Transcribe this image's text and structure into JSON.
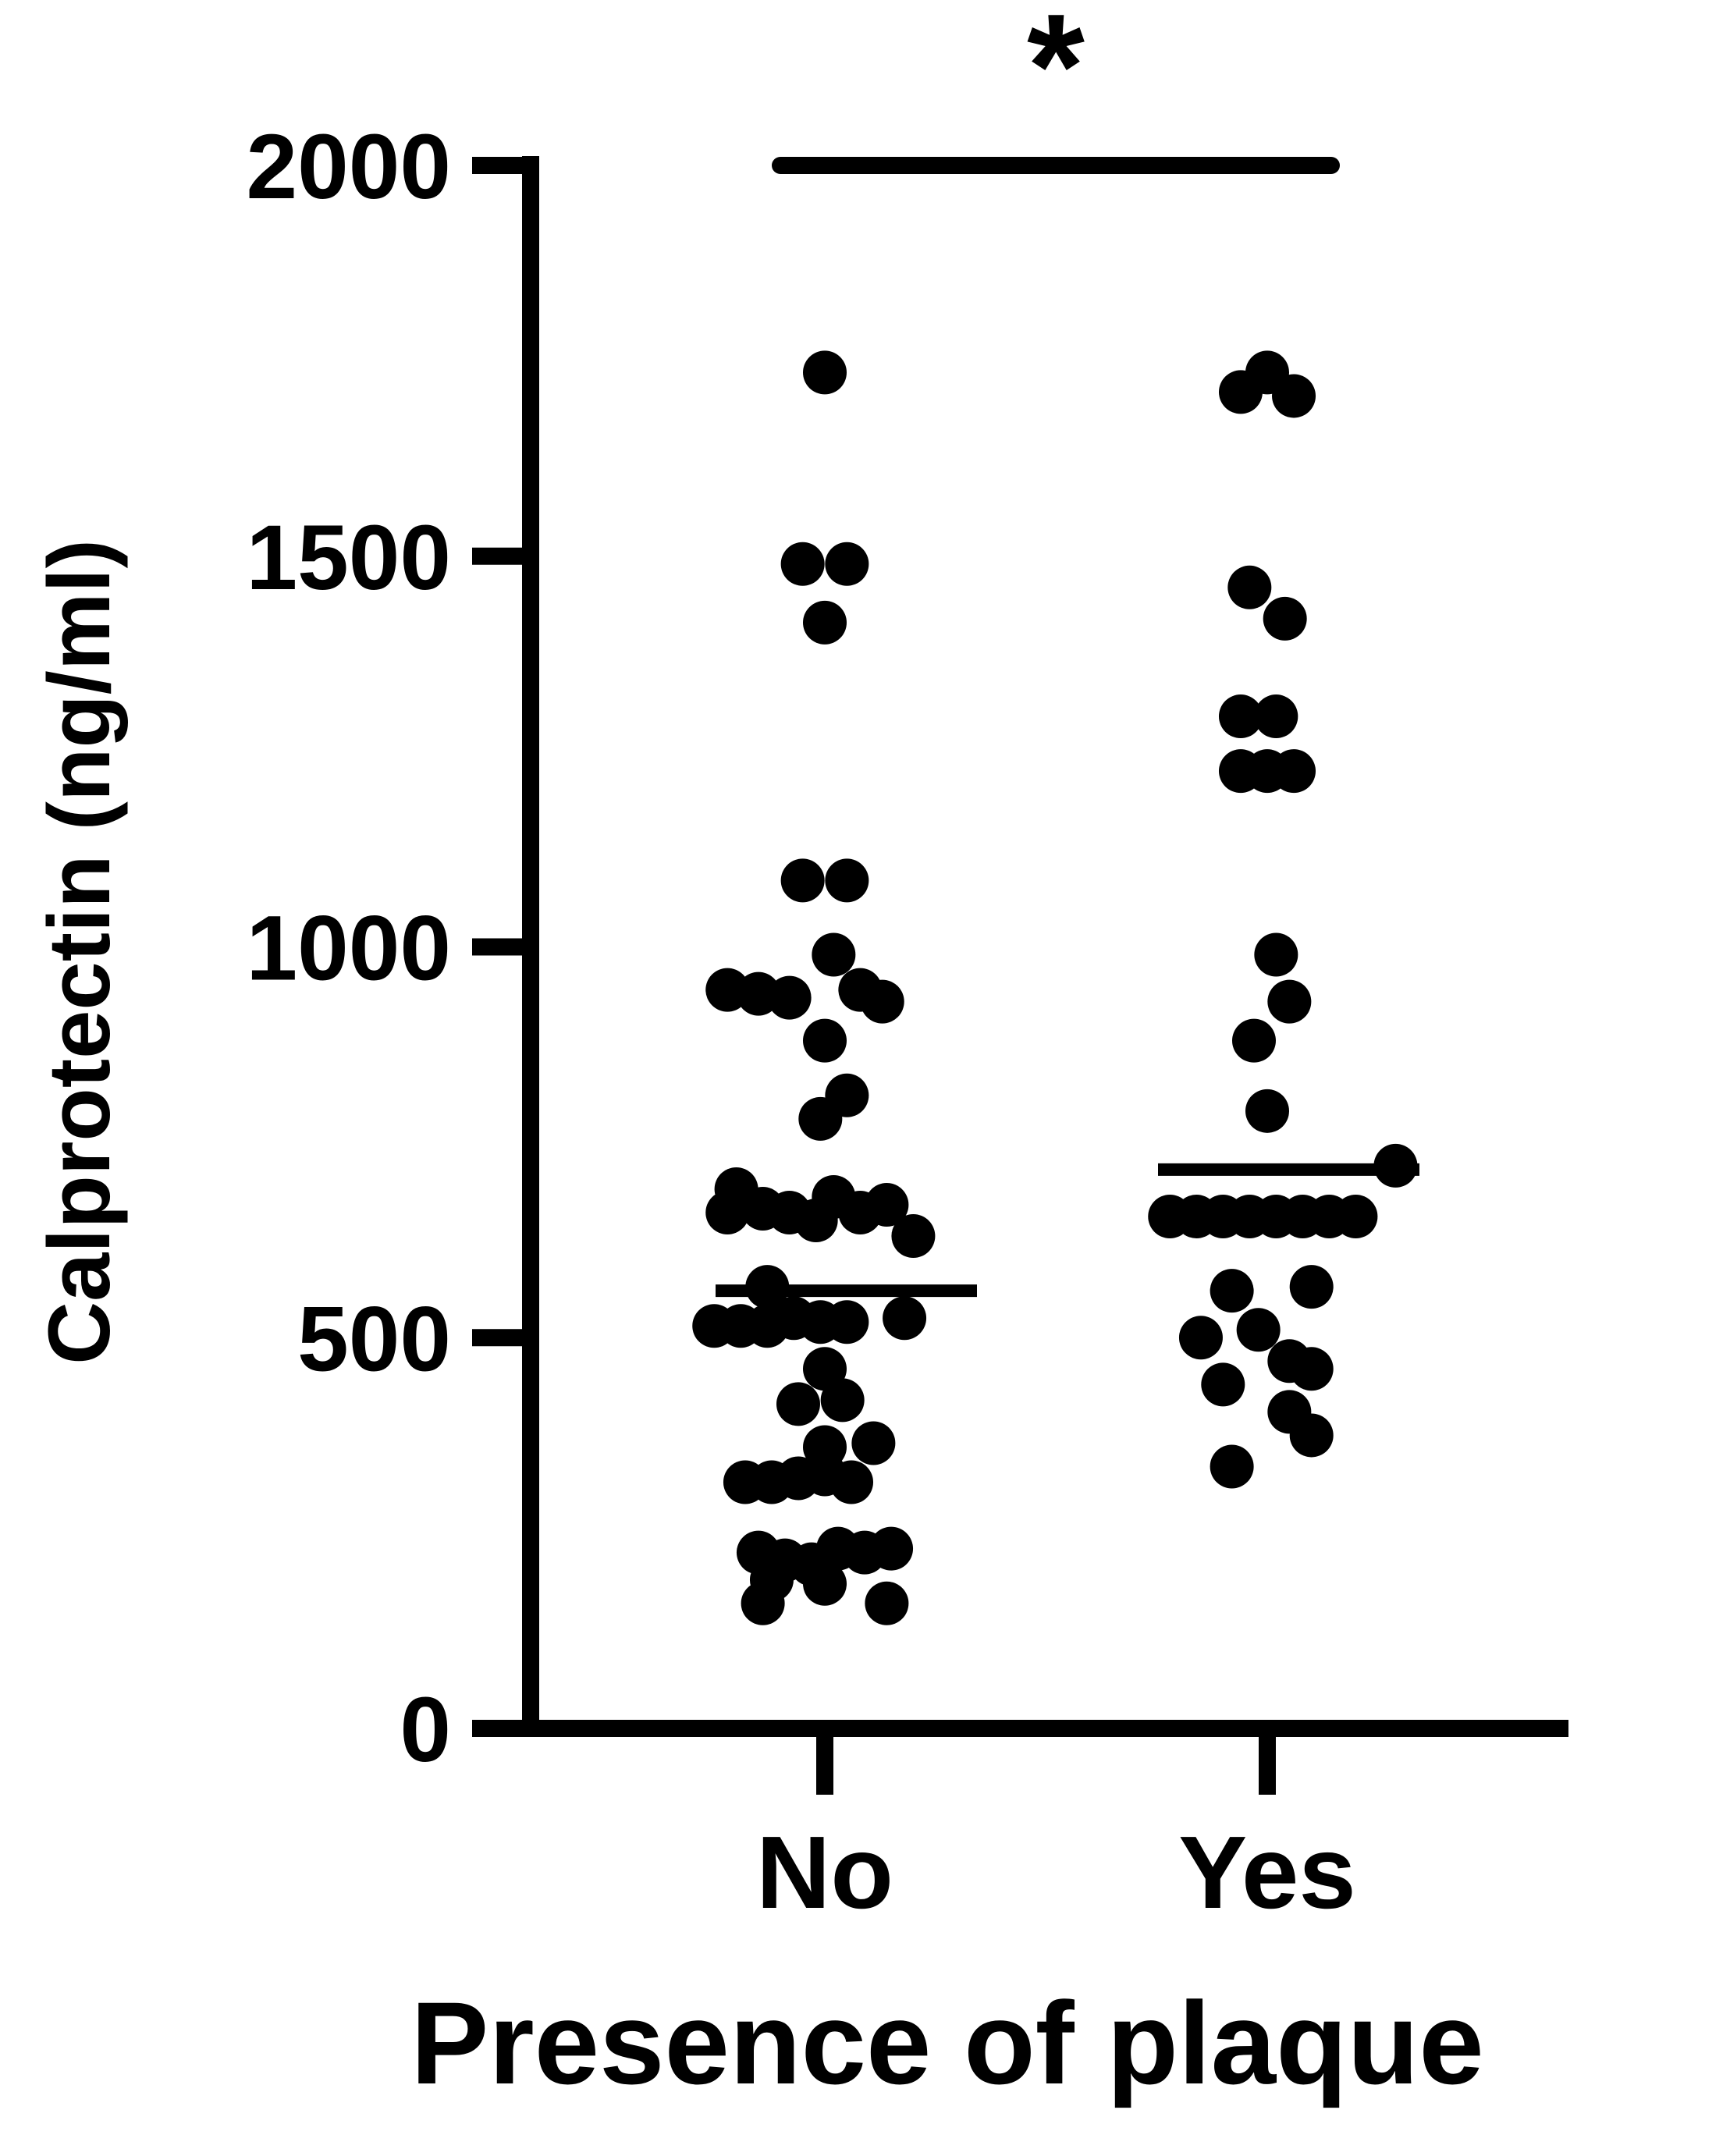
{
  "chart_data": {
    "type": "scatter",
    "xlabel": "Presence of plaque",
    "ylabel": "Calprotectin (ng/ml)",
    "ylim": [
      0,
      2000
    ],
    "yticks": [
      0,
      500,
      1000,
      1500,
      2000
    ],
    "categories": [
      "No",
      "Yes"
    ],
    "significance": {
      "label": "*",
      "between": [
        "No",
        "Yes"
      ]
    },
    "series": [
      {
        "category": "No",
        "median": 560,
        "points": [
          {
            "offset": 0.0,
            "y": 1735
          },
          {
            "offset": -0.05,
            "y": 1490
          },
          {
            "offset": 0.05,
            "y": 1490
          },
          {
            "offset": 0.0,
            "y": 1415
          },
          {
            "offset": -0.05,
            "y": 1085
          },
          {
            "offset": 0.05,
            "y": 1085
          },
          {
            "offset": 0.02,
            "y": 990
          },
          {
            "offset": -0.22,
            "y": 945
          },
          {
            "offset": -0.15,
            "y": 940
          },
          {
            "offset": -0.08,
            "y": 935
          },
          {
            "offset": 0.08,
            "y": 945
          },
          {
            "offset": 0.13,
            "y": 930
          },
          {
            "offset": 0.0,
            "y": 880
          },
          {
            "offset": 0.05,
            "y": 810
          },
          {
            "offset": -0.01,
            "y": 780
          },
          {
            "offset": -0.22,
            "y": 660
          },
          {
            "offset": -0.2,
            "y": 690
          },
          {
            "offset": -0.14,
            "y": 665
          },
          {
            "offset": -0.08,
            "y": 660
          },
          {
            "offset": -0.02,
            "y": 650
          },
          {
            "offset": 0.02,
            "y": 680
          },
          {
            "offset": 0.08,
            "y": 660
          },
          {
            "offset": 0.14,
            "y": 670
          },
          {
            "offset": 0.2,
            "y": 630
          },
          {
            "offset": -0.25,
            "y": 515
          },
          {
            "offset": -0.19,
            "y": 515
          },
          {
            "offset": -0.13,
            "y": 515
          },
          {
            "offset": -0.07,
            "y": 525
          },
          {
            "offset": -0.01,
            "y": 520
          },
          {
            "offset": 0.05,
            "y": 520
          },
          {
            "offset": -0.13,
            "y": 565
          },
          {
            "offset": 0.18,
            "y": 525
          },
          {
            "offset": 0.0,
            "y": 460
          },
          {
            "offset": -0.06,
            "y": 415
          },
          {
            "offset": 0.04,
            "y": 420
          },
          {
            "offset": 0.0,
            "y": 360
          },
          {
            "offset": 0.11,
            "y": 365
          },
          {
            "offset": -0.18,
            "y": 315
          },
          {
            "offset": -0.12,
            "y": 315
          },
          {
            "offset": -0.06,
            "y": 320
          },
          {
            "offset": 0.0,
            "y": 325
          },
          {
            "offset": 0.06,
            "y": 315
          },
          {
            "offset": -0.15,
            "y": 225
          },
          {
            "offset": -0.09,
            "y": 215
          },
          {
            "offset": -0.03,
            "y": 210
          },
          {
            "offset": 0.03,
            "y": 230
          },
          {
            "offset": 0.09,
            "y": 225
          },
          {
            "offset": 0.15,
            "y": 230
          },
          {
            "offset": -0.12,
            "y": 190
          },
          {
            "offset": 0.0,
            "y": 185
          },
          {
            "offset": -0.14,
            "y": 160
          },
          {
            "offset": 0.14,
            "y": 160
          }
        ]
      },
      {
        "category": "Yes",
        "median": 715,
        "points": [
          {
            "offset": -0.06,
            "y": 1710
          },
          {
            "offset": 0.0,
            "y": 1735
          },
          {
            "offset": 0.06,
            "y": 1705
          },
          {
            "offset": -0.04,
            "y": 1460
          },
          {
            "offset": 0.04,
            "y": 1420
          },
          {
            "offset": -0.06,
            "y": 1295
          },
          {
            "offset": 0.02,
            "y": 1295
          },
          {
            "offset": -0.06,
            "y": 1225
          },
          {
            "offset": 0.0,
            "y": 1225
          },
          {
            "offset": 0.06,
            "y": 1225
          },
          {
            "offset": 0.02,
            "y": 990
          },
          {
            "offset": 0.05,
            "y": 930
          },
          {
            "offset": -0.03,
            "y": 880
          },
          {
            "offset": 0.0,
            "y": 790
          },
          {
            "offset": 0.29,
            "y": 720
          },
          {
            "offset": -0.22,
            "y": 655
          },
          {
            "offset": -0.16,
            "y": 655
          },
          {
            "offset": -0.1,
            "y": 655
          },
          {
            "offset": -0.04,
            "y": 655
          },
          {
            "offset": 0.02,
            "y": 655
          },
          {
            "offset": 0.08,
            "y": 655
          },
          {
            "offset": 0.14,
            "y": 655
          },
          {
            "offset": 0.2,
            "y": 655
          },
          {
            "offset": -0.08,
            "y": 560
          },
          {
            "offset": 0.1,
            "y": 565
          },
          {
            "offset": -0.15,
            "y": 500
          },
          {
            "offset": -0.02,
            "y": 510
          },
          {
            "offset": 0.05,
            "y": 470
          },
          {
            "offset": 0.1,
            "y": 460
          },
          {
            "offset": -0.1,
            "y": 440
          },
          {
            "offset": 0.05,
            "y": 405
          },
          {
            "offset": 0.1,
            "y": 375
          },
          {
            "offset": -0.08,
            "y": 335
          }
        ]
      }
    ]
  }
}
